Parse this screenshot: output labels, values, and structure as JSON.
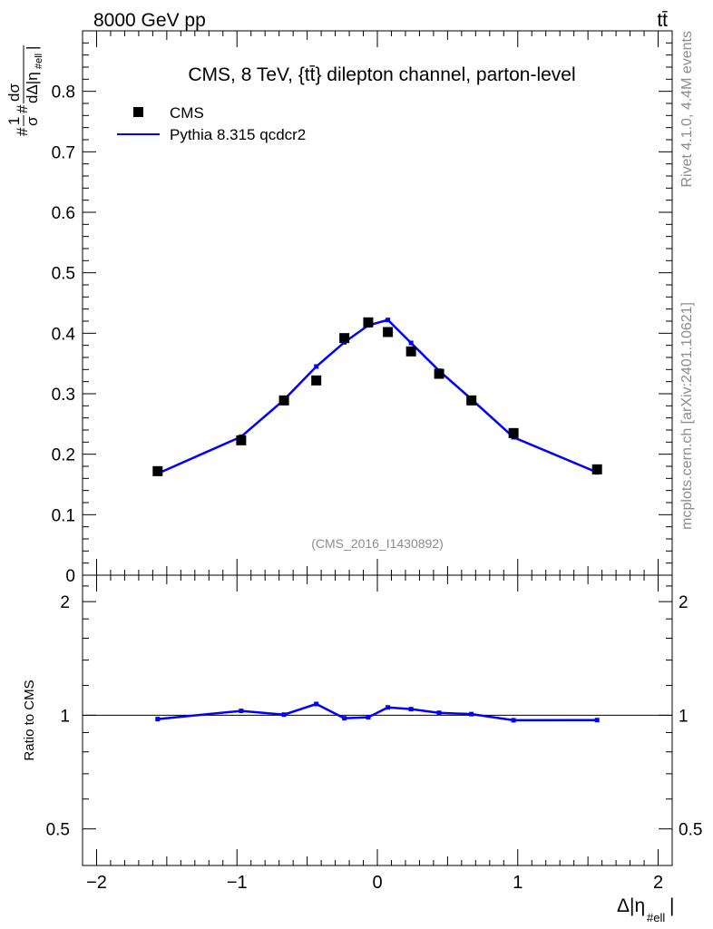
{
  "header": {
    "left": "8000 GeV pp",
    "right": "tt̄"
  },
  "side_labels": {
    "rivet": "Rivet 4.1.0,  4.4M events",
    "source": "mcplots.cern.ch [arXiv:2401.10621]"
  },
  "chart_data": [
    {
      "type": "scatter",
      "title": "CMS, 8 TeV, {tt̄} dilepton channel, parton-level",
      "watermark": "(CMS_2016_I1430892)",
      "ylabel": {
        "frac_num": "1",
        "frac_den": "σ",
        "d_num": "dσ",
        "d_den": "dΔ|η",
        "sub": "#ell",
        "hash": "#"
      },
      "xlabel": {
        "main": "Δ|η",
        "sub": "#ell",
        "close": "|"
      },
      "xlim": [
        -2.1,
        2.1
      ],
      "ylim": [
        0,
        0.9
      ],
      "x_ticks": [
        -2,
        -1,
        0,
        1,
        2
      ],
      "x_tick_labels": [
        "−2",
        "−1",
        "0",
        "1",
        "2"
      ],
      "y_ticks": [
        0,
        0.1,
        0.2,
        0.3,
        0.4,
        0.5,
        0.6,
        0.7,
        0.8
      ],
      "y_tick_labels": [
        "0",
        "0.1",
        "0.2",
        "0.3",
        "0.4",
        "0.5",
        "0.6",
        "0.7",
        "0.8"
      ],
      "legend": [
        {
          "label": "CMS",
          "kind": "marker",
          "color": "#000000"
        },
        {
          "label": "Pythia 8.315 qcdcr2",
          "kind": "line",
          "color": "#0000ff"
        }
      ],
      "x": [
        -1.565,
        -0.97,
        -0.665,
        -0.435,
        -0.235,
        -0.065,
        0.075,
        0.24,
        0.44,
        0.67,
        0.97,
        1.565
      ],
      "series": [
        {
          "name": "CMS",
          "values": [
            0.172,
            0.223,
            0.289,
            0.322,
            0.392,
            0.418,
            0.402,
            0.37,
            0.333,
            0.289,
            0.235,
            0.175
          ]
        },
        {
          "name": "Pythia 8.315 qcdcr2",
          "values": [
            0.168,
            0.229,
            0.29,
            0.345,
            0.385,
            0.413,
            0.422,
            0.384,
            0.338,
            0.291,
            0.228,
            0.17
          ]
        }
      ]
    },
    {
      "type": "line",
      "ylabel": "Ratio to CMS",
      "ylim": [
        0.4,
        2.35
      ],
      "y_ticks": [
        0.5,
        1,
        2
      ],
      "y_tick_labels": [
        "0.5",
        "1",
        "2"
      ],
      "reference": 1,
      "x": [
        -1.565,
        -0.97,
        -0.665,
        -0.435,
        -0.235,
        -0.065,
        0.075,
        0.24,
        0.44,
        0.67,
        0.97,
        1.565
      ],
      "series": [
        {
          "name": "Pythia 8.315 qcdcr2 / CMS",
          "values": [
            0.977,
            1.027,
            1.004,
            1.071,
            0.982,
            0.988,
            1.049,
            1.038,
            1.015,
            1.007,
            0.97,
            0.971
          ]
        }
      ]
    }
  ],
  "colors": {
    "data": "#000000",
    "mc": "#0000ff",
    "annotation": "#8c8c8c"
  }
}
